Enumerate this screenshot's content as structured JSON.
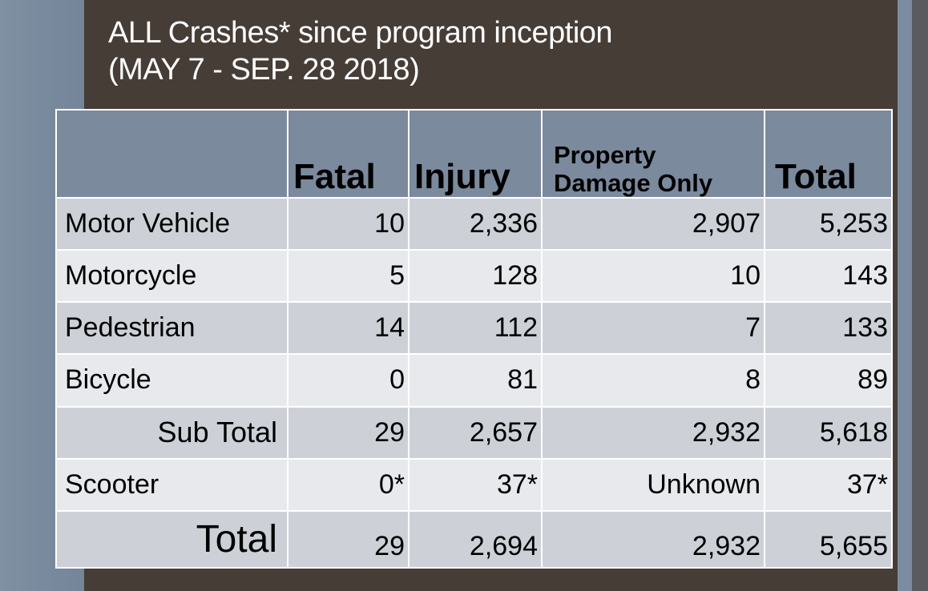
{
  "title": {
    "line1": "ALL Crashes* since program inception",
    "line2": "(MAY 7 - SEP. 28 2018)"
  },
  "table": {
    "headers": {
      "corner": "",
      "fatal": "Fatal",
      "injury": "Injury",
      "pdo_line1": "Property",
      "pdo_line2": "Damage Only",
      "total": "Total"
    },
    "rows": [
      {
        "label": "Motor Vehicle",
        "fatal": "10",
        "injury": "2,336",
        "pdo": "2,907",
        "total": "5,253"
      },
      {
        "label": "Motorcycle",
        "fatal": "5",
        "injury": "128",
        "pdo": "10",
        "total": "143"
      },
      {
        "label": "Pedestrian",
        "fatal": "14",
        "injury": "112",
        "pdo": "7",
        "total": "133"
      },
      {
        "label": "Bicycle",
        "fatal": "0",
        "injury": "81",
        "pdo": "8",
        "total": "89"
      },
      {
        "label": "Sub Total",
        "fatal": "29",
        "injury": "2,657",
        "pdo": "2,932",
        "total": "5,618"
      },
      {
        "label": "Scooter",
        "fatal": "0*",
        "injury": "37*",
        "pdo": "Unknown",
        "total": "37*"
      },
      {
        "label": "Total",
        "fatal": "29",
        "injury": "2,694",
        "pdo": "2,932",
        "total": "5,655"
      }
    ]
  },
  "colors": {
    "slide_bg": "#473d37",
    "header_bg": "#7b8a9d",
    "row_dark": "#cdd1d7",
    "row_light": "#e7e9ec",
    "side_bg": "#78889a"
  }
}
